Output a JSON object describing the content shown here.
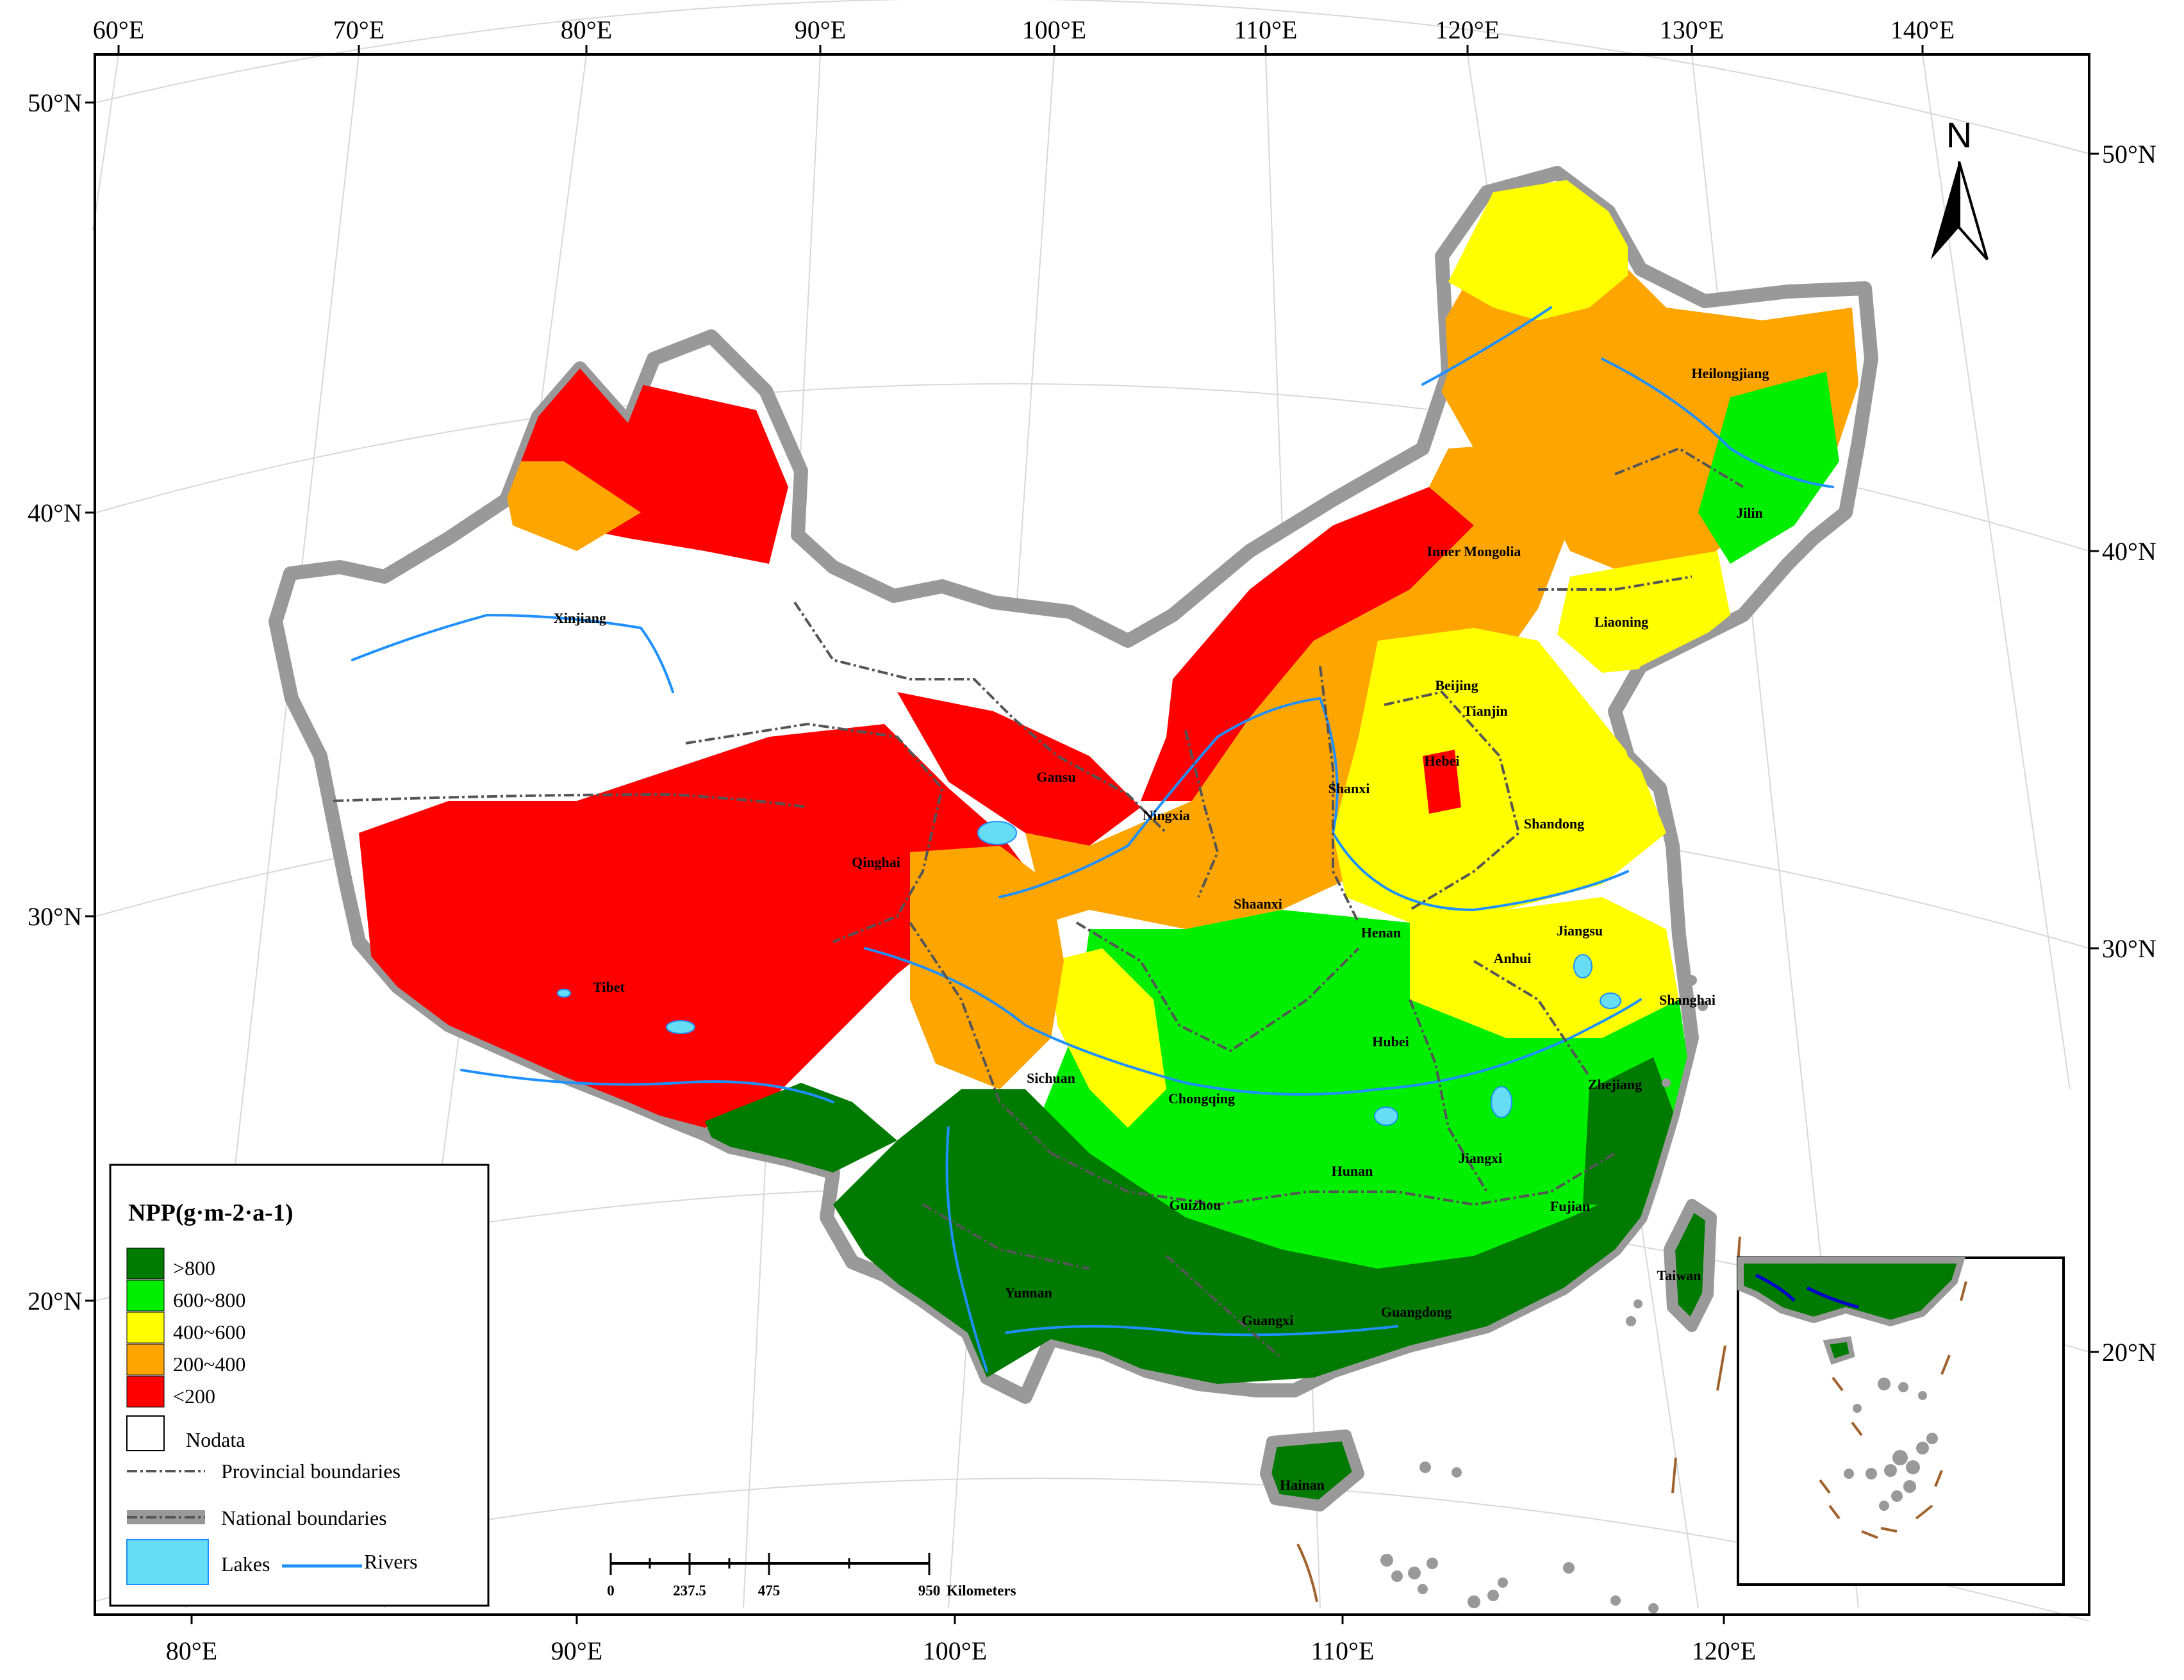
{
  "top_ticks": [
    "60°E",
    "70°E",
    "80°E",
    "90°E",
    "100°E",
    "110°E",
    "120°E",
    "130°E",
    "140°E"
  ],
  "bottom_ticks": [
    "80°E",
    "90°E",
    "100°E",
    "110°E",
    "120°E"
  ],
  "left_ticks": [
    "50°N",
    "40°N",
    "30°N",
    "20°N"
  ],
  "right_ticks": [
    "50°N",
    "40°N",
    "30°N",
    "20°N"
  ],
  "north_label": "N",
  "provinces": [
    {
      "id": "xinjiang",
      "name": "Xinjiang"
    },
    {
      "id": "tibet",
      "name": "Tibet"
    },
    {
      "id": "qinghai",
      "name": "Qinghai"
    },
    {
      "id": "gansu",
      "name": "Gansu"
    },
    {
      "id": "ningxia",
      "name": "Ningxia"
    },
    {
      "id": "inner-mongolia",
      "name": "Inner Mongolia"
    },
    {
      "id": "heilongjiang",
      "name": "Heilongjiang"
    },
    {
      "id": "jilin",
      "name": "Jilin"
    },
    {
      "id": "liaoning",
      "name": "Liaoning"
    },
    {
      "id": "beijing",
      "name": "Beijing"
    },
    {
      "id": "tianjin",
      "name": "Tianjin"
    },
    {
      "id": "hebei",
      "name": "Hebei"
    },
    {
      "id": "shanxi",
      "name": "Shanxi"
    },
    {
      "id": "shandong",
      "name": "Shandong"
    },
    {
      "id": "shaanxi",
      "name": "Shaanxi"
    },
    {
      "id": "henan",
      "name": "Henan"
    },
    {
      "id": "jiangsu",
      "name": "Jiangsu"
    },
    {
      "id": "anhui",
      "name": "Anhui"
    },
    {
      "id": "shanghai",
      "name": "Shanghai"
    },
    {
      "id": "hubei",
      "name": "Hubei"
    },
    {
      "id": "sichuan",
      "name": "Sichuan"
    },
    {
      "id": "chongqing",
      "name": "Chongqing"
    },
    {
      "id": "zhejiang",
      "name": "Zhejiang"
    },
    {
      "id": "jiangxi",
      "name": "Jiangxi"
    },
    {
      "id": "hunan",
      "name": "Hunan"
    },
    {
      "id": "guizhou",
      "name": "Guizhou"
    },
    {
      "id": "fujian",
      "name": "Fujian"
    },
    {
      "id": "taiwan",
      "name": "Taiwan"
    },
    {
      "id": "yunnan",
      "name": "Yunnan"
    },
    {
      "id": "guangxi",
      "name": "Guangxi"
    },
    {
      "id": "guangdong",
      "name": "Guangdong"
    },
    {
      "id": "hainan",
      "name": "Hainan"
    }
  ],
  "legend": {
    "title": "NPP(g·m-2·a-1)",
    "classes": [
      {
        "label": ">800",
        "color": "#007a00"
      },
      {
        "label": "600~800",
        "color": "#00ee00"
      },
      {
        "label": "400~600",
        "color": "#ffff00"
      },
      {
        "label": "200~400",
        "color": "#ffa500"
      },
      {
        "label": "<200",
        "color": "#ff0000"
      }
    ],
    "nodata_label": "Nodata",
    "provincial_label": "Provincial boundaries",
    "national_label": "National boundaries",
    "lakes_label": "Lakes",
    "rivers_label": "Rivers",
    "lake_color": "#66ddf5",
    "river_color": "#1e90ff",
    "national_color": "#999999"
  },
  "scale_bar": {
    "ticks": [
      "0",
      "237.5",
      "475",
      "950"
    ],
    "unit": "Kilometers"
  }
}
